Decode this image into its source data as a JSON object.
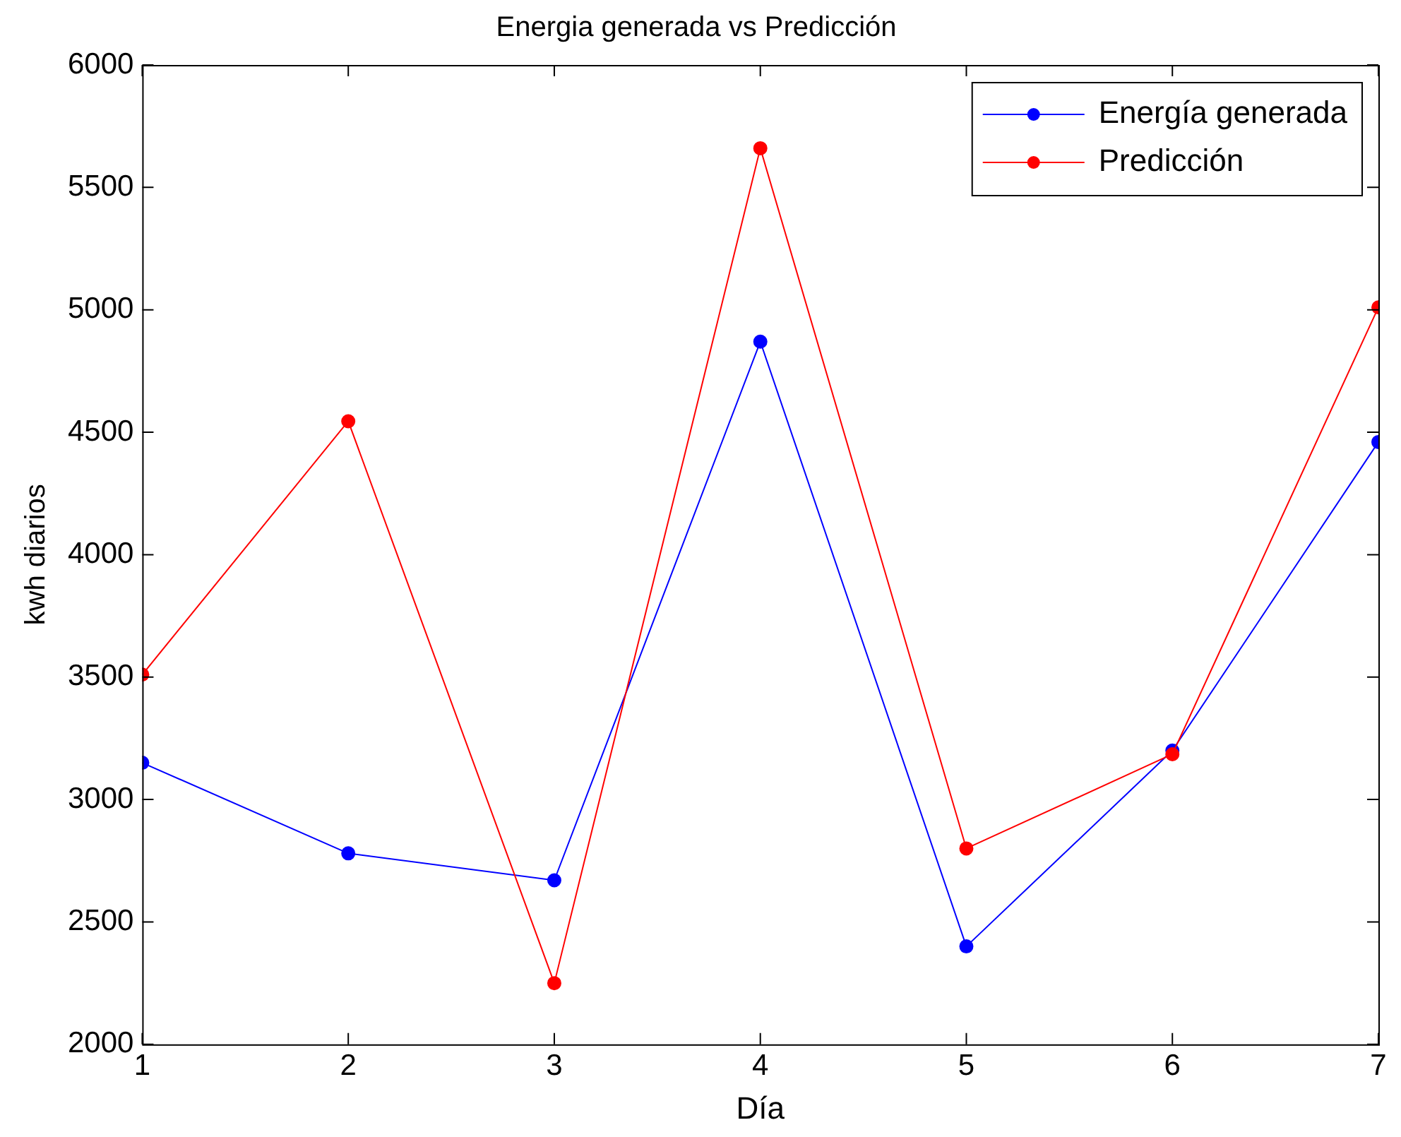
{
  "chart_data": {
    "type": "line",
    "title": "Energia generada vs Predicción",
    "xlabel": "Día",
    "ylabel": "kwh diarios",
    "x": [
      1,
      2,
      3,
      4,
      5,
      6,
      7
    ],
    "series": [
      {
        "name": "Energía generada",
        "color": "#0000ff",
        "values": [
          3150,
          2780,
          2670,
          4870,
          2400,
          3200,
          4460
        ]
      },
      {
        "name": "Predicción",
        "color": "#ff0000",
        "values": [
          3510,
          4545,
          2250,
          5660,
          2800,
          3185,
          5010
        ]
      }
    ],
    "xlim": [
      1,
      7
    ],
    "xticks": [
      1,
      2,
      3,
      4,
      5,
      6,
      7
    ],
    "ylim": [
      2000,
      6000
    ],
    "yticks": [
      2000,
      2500,
      3000,
      3500,
      4000,
      4500,
      5000,
      5500,
      6000
    ],
    "grid": false,
    "legend": "top right",
    "marker": "circle",
    "line_style": "solid"
  }
}
